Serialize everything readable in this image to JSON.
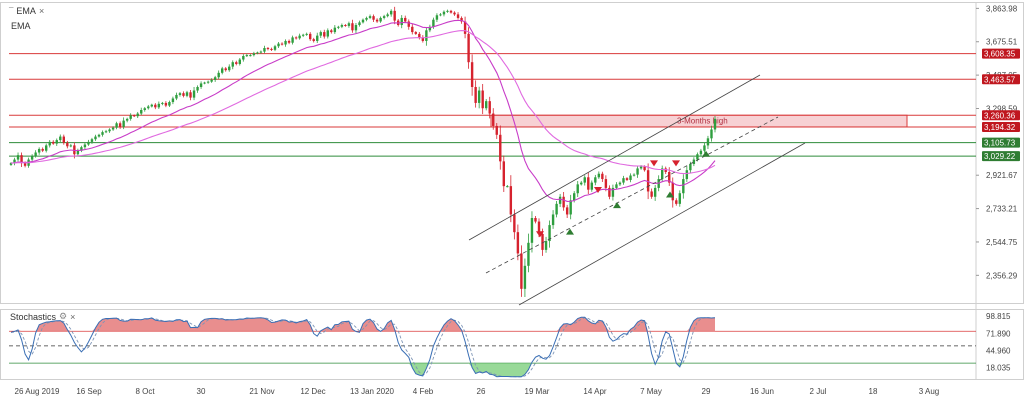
{
  "indicators": {
    "ema1": "EMA",
    "ema2": "EMA",
    "stoch": "Stochastics",
    "close_glyph": "×",
    "settings_icon": "gear-icon"
  },
  "colors": {
    "up": "#2e9e3e",
    "down": "#d6222e",
    "ema_fast": "#c83cc8",
    "ema_slow": "#e06ae0",
    "resistance": "#d93a3a",
    "support": "#2e8b3a",
    "zone_fill": "#f4c2c6",
    "channel": "#444444",
    "stoch_k": "#3a6fb5",
    "stoch_d": "#7d94b5",
    "stoch_up_fill": "#e47272",
    "stoch_down_fill": "#7ed07e"
  },
  "chart_data": [
    {
      "type": "candlestick",
      "title": "",
      "ylim": [
        2200,
        3900
      ],
      "y_ticks": [
        "3,863.98",
        "3,675.51",
        "3,487.05",
        "3,298.59",
        "2,921.67",
        "2,733.21",
        "2,544.75",
        "2,356.29"
      ],
      "x_ticks": [
        "26 Aug 2019",
        "16 Sep",
        "8 Oct",
        "30",
        "21 Nov",
        "12 Dec",
        "13 Jan 2020",
        "4 Feb",
        "26",
        "19 Mar",
        "14 Apr",
        "7 May",
        "29",
        "16 Jun",
        "2 Jul",
        "18",
        "3 Aug"
      ],
      "levels": [
        {
          "label": "3,608.35",
          "value": 3608.35,
          "kind": "resistance"
        },
        {
          "label": "3,463.57",
          "value": 3463.57,
          "kind": "resistance"
        },
        {
          "label": "3,260.36",
          "value": 3260.36,
          "kind": "resistance"
        },
        {
          "label": "3,194.32",
          "value": 3194.32,
          "kind": "resistance"
        },
        {
          "label": "3,105.73",
          "value": 3105.73,
          "kind": "support"
        },
        {
          "label": "3,029.22",
          "value": 3029.22,
          "kind": "support"
        }
      ],
      "zone": {
        "label": "3-Months high",
        "from": 3194.32,
        "to": 3260.36
      },
      "arrows_down": [
        2560,
        2810,
        2960,
        2960
      ],
      "arrows_up": [
        2620,
        2770,
        2830,
        3060
      ],
      "candles_note": "approximate daily OHLC path",
      "path": [
        2990,
        3010,
        3035,
        2990,
        2975,
        3010,
        3030,
        3050,
        3070,
        3060,
        3090,
        3110,
        3100,
        3120,
        3140,
        3105,
        3085,
        3090,
        3040,
        3060,
        3080,
        3095,
        3110,
        3125,
        3140,
        3150,
        3165,
        3170,
        3180,
        3190,
        3215,
        3195,
        3230,
        3240,
        3260,
        3255,
        3270,
        3290,
        3300,
        3310,
        3320,
        3305,
        3325,
        3330,
        3315,
        3335,
        3355,
        3375,
        3385,
        3370,
        3390,
        3360,
        3400,
        3420,
        3440,
        3445,
        3450,
        3460,
        3475,
        3500,
        3525,
        3515,
        3535,
        3560,
        3550,
        3575,
        3595,
        3600,
        3600,
        3610,
        3615,
        3620,
        3640,
        3635,
        3630,
        3650,
        3665,
        3660,
        3680,
        3670,
        3700,
        3695,
        3710,
        3715,
        3720,
        3690,
        3680,
        3710,
        3730,
        3705,
        3740,
        3730,
        3755,
        3760,
        3770,
        3765,
        3780,
        3740,
        3770,
        3785,
        3800,
        3810,
        3820,
        3800,
        3790,
        3810,
        3820,
        3830,
        3850,
        3795,
        3770,
        3810,
        3790,
        3760,
        3730,
        3720,
        3700,
        3680,
        3740,
        3760,
        3800,
        3825,
        3830,
        3845,
        3850,
        3840,
        3830,
        3810,
        3790,
        3720,
        3560,
        3420,
        3330,
        3400,
        3300,
        3340,
        3270,
        3200,
        3150,
        3000,
        2860,
        2860,
        2700,
        2600,
        2480,
        2280,
        2410,
        2540,
        2680,
        2660,
        2590,
        2500,
        2550,
        2640,
        2700,
        2760,
        2800,
        2740,
        2700,
        2780,
        2820,
        2870,
        2880,
        2910,
        2840,
        2880,
        2910,
        2930,
        2900,
        2850,
        2800,
        2850,
        2870,
        2880,
        2905,
        2895,
        2920,
        2925,
        2960,
        2970,
        2950,
        2830,
        2800,
        2850,
        2900,
        2960,
        2940,
        2880,
        2780,
        2760,
        2820,
        2900,
        2950,
        2985,
        3010,
        3040,
        3060,
        3090,
        3130,
        3180,
        3240
      ]
    },
    {
      "type": "line",
      "title": "Stochastics",
      "ylim": [
        0,
        110
      ],
      "y_ticks": [
        "98.815",
        "71.890",
        "44.960",
        "18.035"
      ],
      "levels": [
        80,
        50,
        20
      ]
    }
  ]
}
